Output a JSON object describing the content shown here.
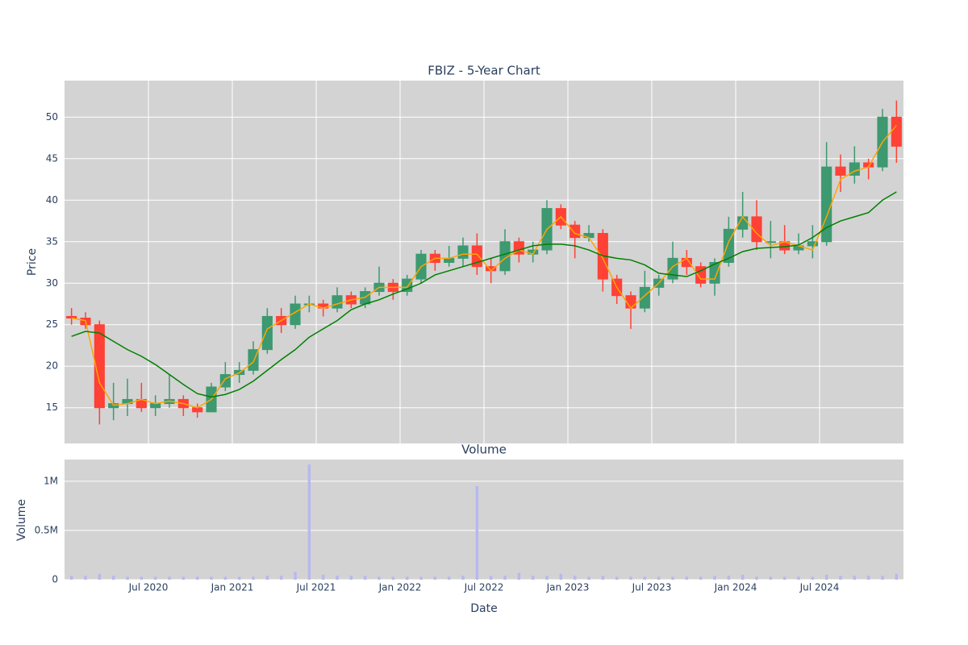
{
  "chart_data": [
    {
      "type": "candlestick",
      "title": "FBIZ - 5-Year Chart",
      "y_label": "Price",
      "x": [
        "2020-01",
        "2020-02",
        "2020-03",
        "2020-04",
        "2020-05",
        "2020-06",
        "2020-07",
        "2020-08",
        "2020-09",
        "2020-10",
        "2020-11",
        "2020-12",
        "2021-01",
        "2021-02",
        "2021-03",
        "2021-04",
        "2021-05",
        "2021-06",
        "2021-07",
        "2021-08",
        "2021-09",
        "2021-10",
        "2021-11",
        "2021-12",
        "2022-01",
        "2022-02",
        "2022-03",
        "2022-04",
        "2022-05",
        "2022-06",
        "2022-07",
        "2022-08",
        "2022-09",
        "2022-10",
        "2022-11",
        "2022-12",
        "2023-01",
        "2023-02",
        "2023-03",
        "2023-04",
        "2023-05",
        "2023-06",
        "2023-07",
        "2023-08",
        "2023-09",
        "2023-10",
        "2023-11",
        "2023-12",
        "2024-01",
        "2024-02",
        "2024-03",
        "2024-04",
        "2024-05",
        "2024-06",
        "2024-07",
        "2024-08",
        "2024-09",
        "2024-10",
        "2024-11",
        "2024-12"
      ],
      "open": [
        26,
        25.8,
        25,
        15,
        15.5,
        16,
        15,
        15.5,
        16,
        15,
        14.5,
        17.5,
        19,
        19.5,
        22,
        26,
        25,
        27.5,
        27.5,
        27,
        28.5,
        27.5,
        29,
        30,
        29,
        30.5,
        33.5,
        32.5,
        33,
        34.5,
        32,
        31.5,
        35,
        33.5,
        34,
        39,
        37,
        35.5,
        36,
        30.5,
        28.5,
        27,
        29.5,
        30.5,
        33,
        32,
        30,
        32.5,
        36.5,
        38,
        35,
        35,
        34,
        34.5,
        35,
        44,
        43,
        44.5,
        44,
        50
      ],
      "high": [
        27,
        26.5,
        25.5,
        18,
        18.5,
        18,
        16.5,
        19,
        16.5,
        15.5,
        18,
        20.5,
        20.5,
        23,
        27,
        27,
        28.5,
        28.5,
        28,
        29.5,
        29,
        29.5,
        32,
        30.5,
        31,
        34,
        34,
        34.5,
        35.5,
        36,
        33,
        36.5,
        35.5,
        35,
        40,
        39.5,
        37.5,
        37,
        36.5,
        31,
        29,
        31.5,
        31,
        35,
        34,
        32.5,
        33,
        38,
        41,
        40,
        37.5,
        37,
        36,
        37,
        47,
        45.5,
        46.5,
        45,
        51,
        52
      ],
      "low": [
        25,
        24.5,
        13,
        13.5,
        14,
        14.5,
        14,
        15,
        14,
        13.8,
        14.5,
        17,
        18,
        19,
        21.5,
        24,
        24.5,
        26.5,
        26,
        26.5,
        27,
        27,
        28.5,
        28,
        28.5,
        30,
        31.5,
        32,
        32,
        31,
        30,
        31,
        32.5,
        32.5,
        33.5,
        36.5,
        33,
        35,
        29,
        27.5,
        24.5,
        26.5,
        28.5,
        30,
        31,
        29.5,
        28.5,
        32,
        35.5,
        34,
        33,
        33.5,
        33.5,
        33,
        34.5,
        41,
        42,
        42.5,
        43.5,
        44.5
      ],
      "close": [
        25.8,
        25,
        15,
        15.5,
        16,
        15,
        15.5,
        16,
        15,
        14.5,
        17.5,
        19,
        19.5,
        22,
        26,
        25,
        27.5,
        27.5,
        27,
        28.5,
        27.5,
        29,
        30,
        29,
        30.5,
        33.5,
        32.5,
        33,
        34.5,
        32,
        31.5,
        35,
        33.5,
        34,
        39,
        37,
        35.5,
        36,
        30.5,
        28.5,
        27,
        29.5,
        30.5,
        33,
        32,
        30,
        32.5,
        36.5,
        38,
        35,
        35,
        34,
        34.5,
        35,
        44,
        43,
        44.5,
        44,
        50,
        46.5
      ],
      "increasing_color": "#3d9970",
      "decreasing_color": "#ff4136",
      "series": [
        {
          "color": "#ffa500",
          "values": [
            25.8,
            25.5,
            18,
            15.3,
            15.5,
            16,
            15.5,
            15.8,
            15.5,
            15,
            16,
            18.5,
            19.2,
            20.5,
            24.5,
            25.5,
            26.5,
            27.5,
            27,
            27.5,
            28,
            28.3,
            29.5,
            29.5,
            29.5,
            32,
            33,
            33,
            33.5,
            33.5,
            31.5,
            33,
            34,
            33.5,
            36.5,
            38,
            36,
            35.5,
            33,
            29.5,
            27,
            28.5,
            30,
            32,
            33,
            30.5,
            30.5,
            35,
            38,
            36,
            34.5,
            35,
            34.5,
            34,
            38,
            42.5,
            43.5,
            44,
            47,
            49
          ]
        },
        {
          "color": "#008000",
          "values": [
            23.6,
            24.2,
            24,
            23,
            22,
            21.2,
            20.2,
            19,
            17.8,
            16.7,
            16.3,
            16.6,
            17.2,
            18.2,
            19.5,
            20.8,
            22,
            23.5,
            24.5,
            25.5,
            26.8,
            27.5,
            28,
            28.7,
            29.3,
            30,
            31,
            31.5,
            32,
            32.5,
            33,
            33.5,
            34,
            34.5,
            34.7,
            34.7,
            34.5,
            34,
            33.3,
            33,
            32.8,
            32.2,
            31.2,
            31,
            30.8,
            31.5,
            32.3,
            33,
            33.8,
            34.2,
            34.3,
            34.4,
            34.6,
            35.5,
            36.7,
            37.5,
            38,
            38.5,
            40,
            41
          ]
        }
      ],
      "ylim": [
        10.7,
        54.4
      ],
      "yticks": [
        15,
        20,
        25,
        30,
        35,
        40,
        45,
        50
      ],
      "grid": true
    },
    {
      "type": "bar",
      "title": "Volume",
      "y_label": "Volume",
      "x_label": "Date",
      "values": [
        40000,
        40000,
        60000,
        40000,
        30000,
        30000,
        30000,
        30000,
        30000,
        30000,
        30000,
        30000,
        30000,
        30000,
        40000,
        40000,
        80000,
        1170000,
        50000,
        40000,
        40000,
        40000,
        30000,
        30000,
        30000,
        30000,
        30000,
        30000,
        40000,
        950000,
        40000,
        40000,
        70000,
        40000,
        40000,
        60000,
        40000,
        30000,
        40000,
        30000,
        30000,
        30000,
        30000,
        30000,
        30000,
        30000,
        40000,
        40000,
        50000,
        30000,
        30000,
        30000,
        30000,
        30000,
        50000,
        40000,
        40000,
        40000,
        40000,
        60000
      ],
      "color": "#b8b8f0",
      "ylim": [
        0,
        1220000
      ],
      "yticks": [
        0,
        {
          "value": 500000,
          "label": "0.5M"
        },
        {
          "value": 1000000,
          "label": "1M"
        }
      ],
      "xticks": [
        {
          "value": "2020-07",
          "label": "Jul 2020"
        },
        {
          "value": "2021-01",
          "label": "Jan 2021"
        },
        {
          "value": "2021-07",
          "label": "Jul 2021"
        },
        {
          "value": "2022-01",
          "label": "Jan 2022"
        },
        {
          "value": "2022-07",
          "label": "Jul 2022"
        },
        {
          "value": "2023-01",
          "label": "Jan 2023"
        },
        {
          "value": "2023-07",
          "label": "Jul 2023"
        },
        {
          "value": "2024-01",
          "label": "Jan 2024"
        },
        {
          "value": "2024-07",
          "label": "Jul 2024"
        }
      ],
      "grid": true
    }
  ]
}
